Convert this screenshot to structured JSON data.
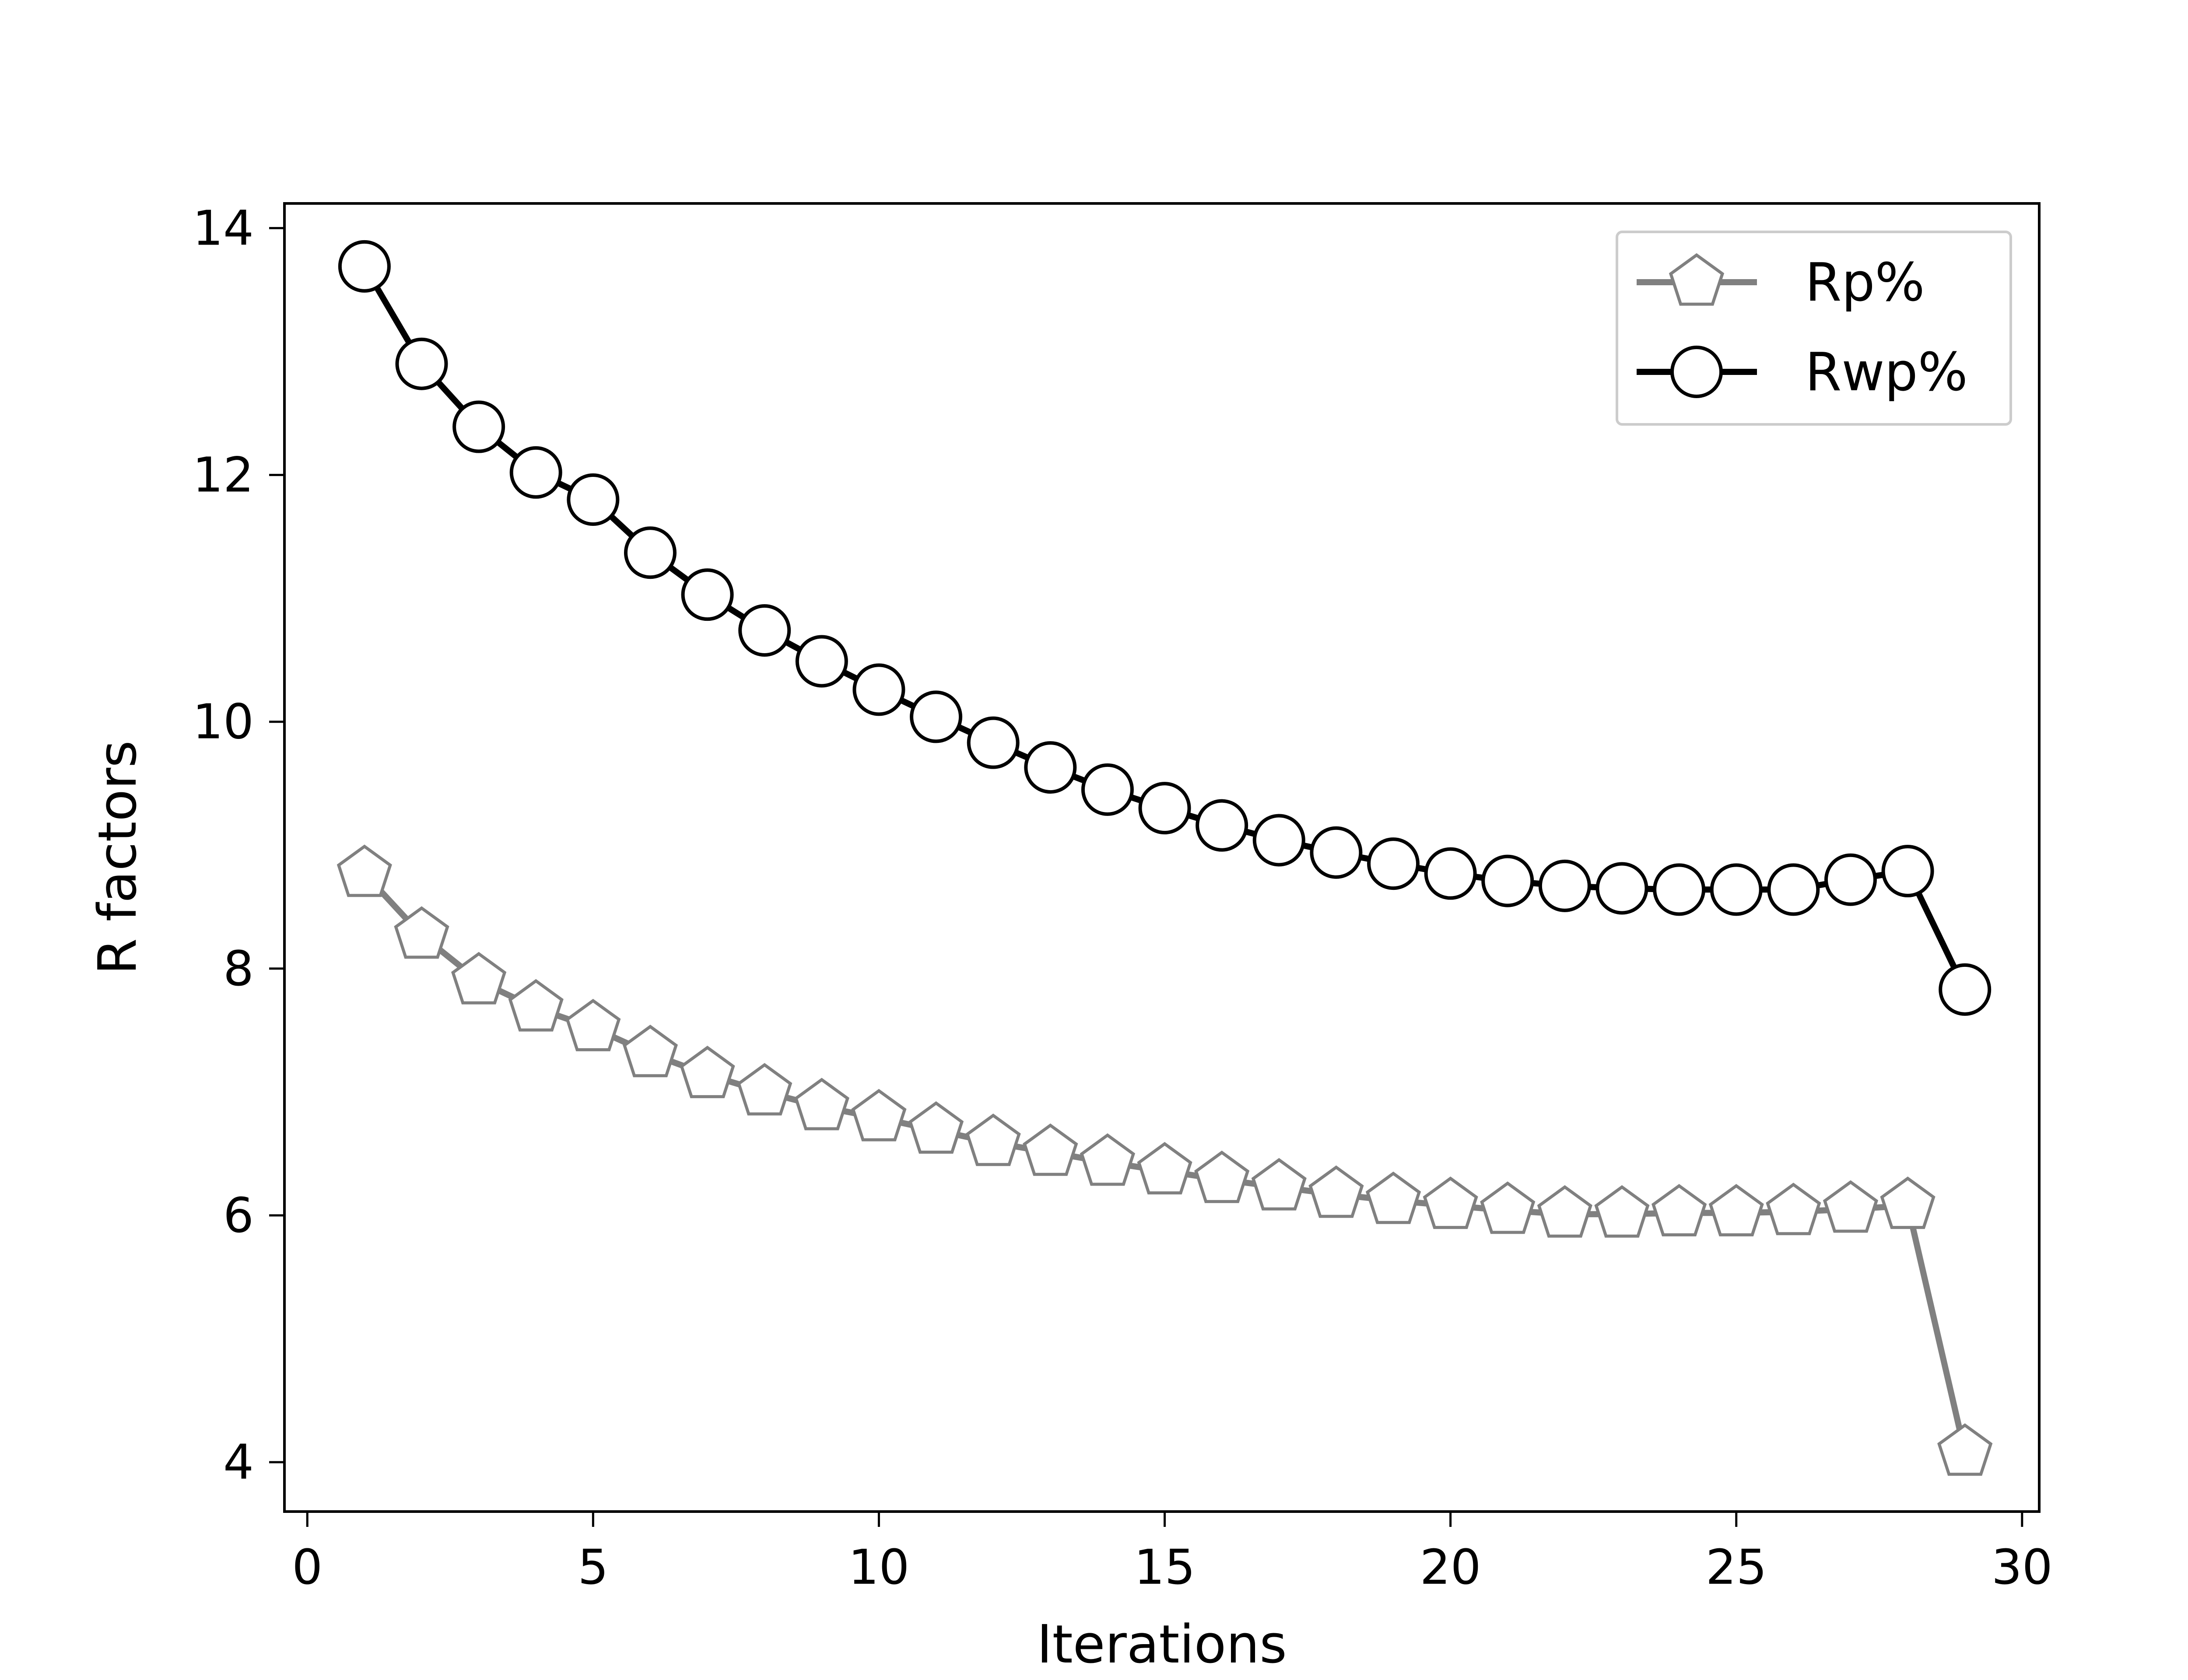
{
  "chart_data": {
    "type": "line",
    "title": "",
    "xlabel": "Iterations",
    "ylabel": "R factors",
    "xlim": [
      -0.4,
      30.3
    ],
    "ylim": [
      3.6,
      14.2
    ],
    "xticks": [
      0,
      5,
      10,
      15,
      20,
      25,
      30
    ],
    "yticks": [
      4,
      6,
      8,
      10,
      12,
      14
    ],
    "grid": false,
    "legend_position": "top-right",
    "series": [
      {
        "name": "Rp%",
        "color": "#808080",
        "marker": "pentagon",
        "x": [
          1,
          2,
          3,
          4,
          5,
          6,
          7,
          8,
          9,
          10,
          11,
          12,
          13,
          14,
          15,
          16,
          17,
          18,
          19,
          20,
          21,
          22,
          23,
          24,
          25,
          26,
          27,
          28,
          29
        ],
        "values": [
          8.77,
          8.27,
          7.9,
          7.68,
          7.52,
          7.31,
          7.14,
          7.0,
          6.88,
          6.79,
          6.69,
          6.59,
          6.51,
          6.43,
          6.36,
          6.29,
          6.23,
          6.17,
          6.12,
          6.08,
          6.04,
          6.01,
          6.01,
          6.02,
          6.02,
          6.03,
          6.05,
          6.08,
          4.08
        ]
      },
      {
        "name": "Rwp%",
        "color": "#000000",
        "marker": "circle",
        "x": [
          1,
          2,
          3,
          4,
          5,
          6,
          7,
          8,
          9,
          10,
          11,
          12,
          13,
          14,
          15,
          16,
          17,
          18,
          19,
          20,
          21,
          22,
          23,
          24,
          25,
          26,
          27,
          28,
          29
        ],
        "values": [
          13.69,
          12.9,
          12.39,
          12.02,
          11.8,
          11.37,
          11.03,
          10.74,
          10.49,
          10.26,
          10.04,
          9.83,
          9.63,
          9.45,
          9.3,
          9.16,
          9.04,
          8.94,
          8.85,
          8.77,
          8.71,
          8.67,
          8.65,
          8.64,
          8.64,
          8.64,
          8.72,
          8.79,
          7.83
        ]
      }
    ]
  }
}
